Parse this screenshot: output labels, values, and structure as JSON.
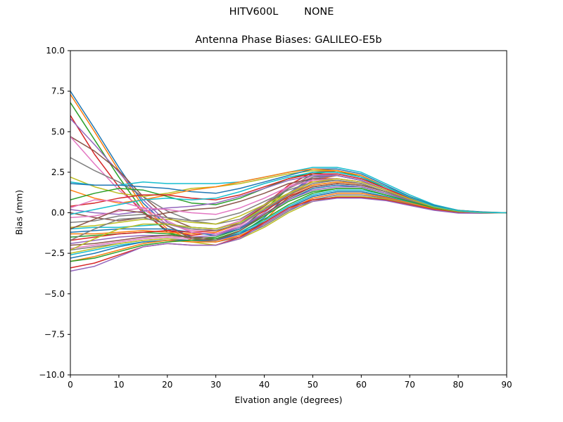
{
  "figure": {
    "suptitle": "HITV600L        NONE",
    "title": "Antenna Phase Biases: GALILEO-E5b",
    "xlabel": "Elvation angle (degrees)",
    "ylabel": "Bias (mm)"
  },
  "chart_data": {
    "type": "line",
    "title": "Antenna Phase Biases: GALILEO-E5b",
    "suptitle": "HITV600L        NONE",
    "xlabel": "Elvation angle (degrees)",
    "ylabel": "Bias (mm)",
    "xlim": [
      0,
      90
    ],
    "ylim": [
      -10,
      10
    ],
    "xticks": [
      0,
      10,
      20,
      30,
      40,
      50,
      60,
      70,
      80,
      90
    ],
    "yticks": [
      -10.0,
      -7.5,
      -5.0,
      -2.5,
      0.0,
      2.5,
      5.0,
      7.5,
      10.0
    ],
    "ytick_labels": [
      "−10.0",
      "−7.5",
      "−5.0",
      "−2.5",
      "0.0",
      "2.5",
      "5.0",
      "7.5",
      "10.0"
    ],
    "grid": false,
    "legend": false,
    "x": [
      0,
      5,
      10,
      15,
      20,
      25,
      30,
      35,
      40,
      45,
      50,
      55,
      60,
      65,
      70,
      75,
      80,
      85,
      90
    ],
    "colors": [
      "#1f77b4",
      "#ff7f0e",
      "#2ca02c",
      "#d62728",
      "#9467bd",
      "#8c564b",
      "#e377c2",
      "#7f7f7f",
      "#bcbd22",
      "#17becf"
    ],
    "series": [
      {
        "name": "s1",
        "values": [
          7.5,
          5.2,
          2.8,
          0.6,
          -0.8,
          -1.5,
          -1.6,
          -1.3,
          -0.3,
          1.2,
          2.2,
          2.4,
          2.1,
          1.5,
          0.9,
          0.4,
          0.15,
          0.05,
          0.0
        ]
      },
      {
        "name": "s2",
        "values": [
          7.3,
          5.0,
          2.6,
          0.4,
          -1.0,
          -1.7,
          -1.8,
          -1.5,
          -0.5,
          1.0,
          2.0,
          2.3,
          2.0,
          1.4,
          0.8,
          0.35,
          0.1,
          0.0,
          0.0
        ]
      },
      {
        "name": "s3",
        "values": [
          6.8,
          4.5,
          2.2,
          0.1,
          -1.2,
          -1.6,
          -1.5,
          -1.0,
          0.2,
          1.5,
          2.4,
          2.6,
          2.2,
          1.5,
          0.9,
          0.4,
          0.12,
          0.02,
          0.0
        ]
      },
      {
        "name": "s4",
        "values": [
          6.0,
          3.6,
          1.6,
          0.0,
          -1.1,
          -1.4,
          -1.2,
          -0.6,
          0.5,
          1.7,
          2.5,
          2.6,
          2.3,
          1.6,
          1.0,
          0.45,
          0.15,
          0.03,
          0.0
        ]
      },
      {
        "name": "s5",
        "values": [
          5.8,
          4.2,
          2.5,
          0.8,
          -0.6,
          -1.2,
          -1.3,
          -0.9,
          0.0,
          1.2,
          2.1,
          2.3,
          2.0,
          1.4,
          0.85,
          0.35,
          0.1,
          0.0,
          0.0
        ]
      },
      {
        "name": "s6",
        "values": [
          4.7,
          3.8,
          2.6,
          1.0,
          -0.3,
          -0.9,
          -1.0,
          -0.6,
          0.4,
          1.5,
          2.2,
          2.3,
          2.0,
          1.4,
          0.8,
          0.35,
          0.1,
          0.0,
          0.0
        ]
      },
      {
        "name": "s7",
        "values": [
          4.7,
          3.0,
          1.4,
          0.2,
          -0.7,
          -1.1,
          -1.0,
          -0.5,
          0.5,
          1.6,
          2.3,
          2.4,
          2.1,
          1.5,
          0.9,
          0.4,
          0.12,
          0.02,
          0.0
        ]
      },
      {
        "name": "s8",
        "values": [
          3.4,
          2.6,
          1.9,
          1.0,
          0.1,
          -0.5,
          -0.7,
          -0.4,
          0.5,
          1.5,
          2.2,
          2.3,
          2.0,
          1.4,
          0.85,
          0.35,
          0.1,
          0.0,
          0.0
        ]
      },
      {
        "name": "s9",
        "values": [
          2.2,
          1.6,
          1.2,
          1.0,
          1.2,
          1.5,
          1.6,
          1.8,
          2.1,
          2.4,
          2.6,
          2.6,
          2.3,
          1.6,
          1.0,
          0.45,
          0.15,
          0.03,
          0.0
        ]
      },
      {
        "name": "s10",
        "values": [
          1.9,
          1.7,
          1.7,
          1.9,
          1.8,
          1.8,
          1.8,
          1.9,
          2.2,
          2.5,
          2.8,
          2.8,
          2.5,
          1.8,
          1.1,
          0.5,
          0.15,
          0.03,
          0.0
        ]
      },
      {
        "name": "s11",
        "values": [
          1.8,
          1.7,
          1.7,
          1.6,
          1.5,
          1.3,
          1.2,
          1.5,
          1.9,
          2.3,
          2.7,
          2.7,
          2.4,
          1.7,
          1.0,
          0.45,
          0.12,
          0.02,
          0.0
        ]
      },
      {
        "name": "s12",
        "values": [
          1.4,
          0.9,
          0.6,
          0.8,
          1.1,
          1.4,
          1.6,
          1.9,
          2.2,
          2.5,
          2.7,
          2.6,
          2.3,
          1.6,
          0.95,
          0.4,
          0.12,
          0.02,
          0.0
        ]
      },
      {
        "name": "s13",
        "values": [
          0.8,
          1.2,
          1.5,
          1.4,
          1.0,
          0.6,
          0.5,
          0.9,
          1.5,
          2.1,
          2.5,
          2.5,
          2.2,
          1.6,
          0.95,
          0.4,
          0.12,
          0.02,
          0.0
        ]
      },
      {
        "name": "s14",
        "values": [
          0.4,
          0.6,
          0.9,
          1.1,
          1.1,
          0.9,
          0.8,
          1.1,
          1.6,
          2.1,
          2.4,
          2.4,
          2.1,
          1.5,
          0.9,
          0.4,
          0.12,
          0.02,
          0.0
        ]
      },
      {
        "name": "s15",
        "values": [
          0.2,
          0.0,
          -0.1,
          0.1,
          0.3,
          0.4,
          0.6,
          1.0,
          1.5,
          2.0,
          2.3,
          2.3,
          2.0,
          1.4,
          0.85,
          0.35,
          0.1,
          0.0,
          0.0
        ]
      },
      {
        "name": "s16",
        "values": [
          0.0,
          -0.3,
          -0.5,
          -0.3,
          0.0,
          0.2,
          0.3,
          0.7,
          1.2,
          1.8,
          2.1,
          2.1,
          1.9,
          1.4,
          0.85,
          0.35,
          0.1,
          0.0,
          0.0
        ]
      },
      {
        "name": "s17",
        "values": [
          -0.3,
          -0.2,
          0.1,
          0.3,
          0.2,
          0.0,
          -0.1,
          0.3,
          0.9,
          1.6,
          2.0,
          2.1,
          1.9,
          1.4,
          0.8,
          0.35,
          0.1,
          0.0,
          0.0
        ]
      },
      {
        "name": "s18",
        "values": [
          -0.6,
          -0.5,
          -0.2,
          -0.1,
          -0.3,
          -0.5,
          -0.4,
          0.0,
          0.7,
          1.4,
          1.9,
          2.0,
          1.8,
          1.3,
          0.8,
          0.35,
          0.1,
          0.0,
          0.0
        ]
      },
      {
        "name": "s19",
        "values": [
          -0.9,
          -0.8,
          -0.6,
          -0.4,
          -0.4,
          -0.6,
          -0.7,
          -0.2,
          0.5,
          1.2,
          1.7,
          1.9,
          1.8,
          1.3,
          0.8,
          0.35,
          0.1,
          0.0,
          0.0
        ]
      },
      {
        "name": "s20",
        "values": [
          -1.0,
          -0.9,
          -0.9,
          -0.8,
          -0.7,
          -0.9,
          -1.0,
          -0.6,
          0.2,
          1.0,
          1.6,
          1.8,
          1.7,
          1.3,
          0.8,
          0.35,
          0.1,
          0.0,
          0.0
        ]
      },
      {
        "name": "s21",
        "values": [
          -1.2,
          -1.1,
          -1.0,
          -1.0,
          -1.0,
          -1.2,
          -1.4,
          -1.0,
          -0.1,
          0.8,
          1.5,
          1.7,
          1.6,
          1.2,
          0.75,
          0.3,
          0.08,
          0.0,
          0.0
        ]
      },
      {
        "name": "s22",
        "values": [
          -1.3,
          -1.3,
          -1.2,
          -1.1,
          -1.2,
          -1.3,
          -1.2,
          -0.7,
          0.2,
          1.1,
          1.7,
          1.9,
          1.8,
          1.3,
          0.8,
          0.35,
          0.1,
          0.0,
          0.0
        ]
      },
      {
        "name": "s23",
        "values": [
          -1.5,
          -1.4,
          -1.3,
          -1.2,
          -1.3,
          -1.5,
          -1.6,
          -1.2,
          -0.4,
          0.5,
          1.2,
          1.5,
          1.5,
          1.1,
          0.7,
          0.3,
          0.08,
          0.0,
          0.0
        ]
      },
      {
        "name": "s24",
        "values": [
          -1.7,
          -1.5,
          -1.3,
          -1.2,
          -1.1,
          -1.2,
          -1.1,
          -0.7,
          0.1,
          1.0,
          1.6,
          1.8,
          1.7,
          1.3,
          0.8,
          0.35,
          0.1,
          0.0,
          0.0
        ]
      },
      {
        "name": "s25",
        "values": [
          -1.9,
          -1.7,
          -1.5,
          -1.4,
          -1.4,
          -1.5,
          -1.4,
          -0.9,
          -0.1,
          0.8,
          1.4,
          1.6,
          1.6,
          1.2,
          0.75,
          0.3,
          0.08,
          0.0,
          0.0
        ]
      },
      {
        "name": "s26",
        "values": [
          -2.0,
          -1.9,
          -1.7,
          -1.5,
          -1.4,
          -1.5,
          -1.6,
          -1.3,
          -0.6,
          0.3,
          1.0,
          1.3,
          1.3,
          1.0,
          0.6,
          0.25,
          0.05,
          0.0,
          0.0
        ]
      },
      {
        "name": "s27",
        "values": [
          -2.2,
          -2.0,
          -1.8,
          -1.6,
          -1.5,
          -1.6,
          -1.7,
          -1.4,
          -0.7,
          0.2,
          0.9,
          1.2,
          1.2,
          0.95,
          0.6,
          0.25,
          0.05,
          0.0,
          0.0
        ]
      },
      {
        "name": "s28",
        "values": [
          -2.3,
          -2.1,
          -1.9,
          -1.7,
          -1.6,
          -1.7,
          -1.8,
          -1.5,
          -0.8,
          0.1,
          0.8,
          1.1,
          1.1,
          0.9,
          0.55,
          0.2,
          0.03,
          0.0,
          0.0
        ]
      },
      {
        "name": "s29",
        "values": [
          -2.5,
          -2.2,
          -1.9,
          -1.7,
          -1.6,
          -1.8,
          -2.0,
          -1.6,
          -0.9,
          0.0,
          0.7,
          1.0,
          1.0,
          0.85,
          0.5,
          0.2,
          0.02,
          0.0,
          0.0
        ]
      },
      {
        "name": "s30",
        "values": [
          -2.6,
          -2.3,
          -2.0,
          -1.8,
          -1.7,
          -1.7,
          -1.6,
          -1.2,
          -0.5,
          0.4,
          1.1,
          1.4,
          1.4,
          1.1,
          0.65,
          0.25,
          0.05,
          0.0,
          0.0
        ]
      },
      {
        "name": "s31",
        "values": [
          -2.8,
          -2.5,
          -2.1,
          -1.8,
          -1.7,
          -1.7,
          -1.7,
          -1.3,
          -0.6,
          0.3,
          1.0,
          1.3,
          1.3,
          1.0,
          0.6,
          0.25,
          0.05,
          0.0,
          0.0
        ]
      },
      {
        "name": "s32",
        "values": [
          -3.0,
          -2.7,
          -2.3,
          -1.9,
          -1.7,
          -1.8,
          -1.8,
          -1.4,
          -0.7,
          0.2,
          0.9,
          1.2,
          1.2,
          0.95,
          0.6,
          0.25,
          0.05,
          0.0,
          0.0
        ]
      },
      {
        "name": "s33",
        "values": [
          -3.0,
          -2.8,
          -2.4,
          -2.0,
          -1.8,
          -1.7,
          -1.6,
          -1.1,
          -0.2,
          0.7,
          1.3,
          1.5,
          1.5,
          1.1,
          0.7,
          0.3,
          0.08,
          0.0,
          0.0
        ]
      },
      {
        "name": "s34",
        "values": [
          -3.4,
          -3.1,
          -2.6,
          -2.1,
          -1.9,
          -2.0,
          -2.0,
          -1.5,
          -0.6,
          0.3,
          0.8,
          0.95,
          0.95,
          0.8,
          0.5,
          0.2,
          0.0,
          -0.02,
          0.0
        ]
      },
      {
        "name": "s35",
        "values": [
          -3.6,
          -3.3,
          -2.7,
          -2.1,
          -1.9,
          -2.0,
          -2.0,
          -1.6,
          -0.7,
          0.2,
          0.7,
          0.9,
          0.9,
          0.75,
          0.45,
          0.15,
          -0.02,
          -0.03,
          0.0
        ]
      },
      {
        "name": "s36",
        "values": [
          -1.0,
          -0.4,
          0.2,
          0.0,
          -0.8,
          -1.6,
          -1.7,
          -1.1,
          -0.1,
          0.9,
          1.6,
          1.8,
          1.7,
          1.3,
          0.8,
          0.35,
          0.1,
          0.0,
          0.0
        ]
      },
      {
        "name": "s37",
        "values": [
          0.3,
          0.8,
          0.7,
          0.3,
          -0.5,
          -1.2,
          -1.3,
          -0.8,
          0.2,
          1.2,
          1.9,
          2.1,
          1.9,
          1.4,
          0.85,
          0.35,
          0.1,
          0.0,
          0.0
        ]
      },
      {
        "name": "s38",
        "values": [
          -1.7,
          -1.0,
          -0.4,
          -0.3,
          -0.7,
          -1.0,
          -1.1,
          -0.7,
          0.2,
          1.1,
          1.8,
          2.0,
          1.8,
          1.3,
          0.8,
          0.35,
          0.1,
          0.0,
          0.0
        ]
      },
      {
        "name": "s39",
        "values": [
          -2.3,
          -1.6,
          -1.0,
          -0.7,
          -0.7,
          -0.9,
          -1.0,
          -0.6,
          0.3,
          1.2,
          1.9,
          2.1,
          1.9,
          1.4,
          0.85,
          0.35,
          0.1,
          0.0,
          0.0
        ]
      },
      {
        "name": "s40",
        "values": [
          -0.1,
          0.2,
          0.5,
          0.8,
          0.9,
          0.8,
          0.9,
          1.3,
          1.8,
          2.2,
          2.5,
          2.5,
          2.2,
          1.6,
          0.95,
          0.4,
          0.12,
          0.02,
          0.0
        ]
      }
    ]
  }
}
